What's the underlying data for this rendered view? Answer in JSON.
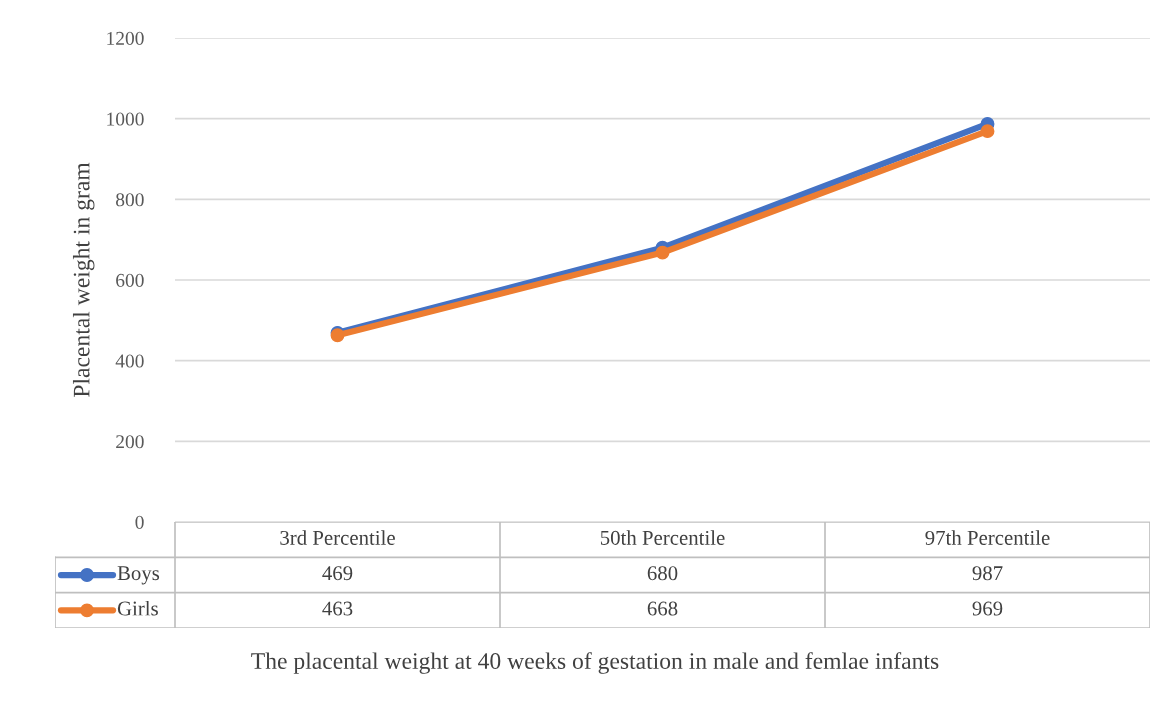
{
  "chart_data": {
    "type": "line",
    "ylabel": "Placental weight in gram",
    "categories": [
      "3rd Percentile",
      "50th Percentile",
      "97th Percentile"
    ],
    "series": [
      {
        "name": "Boys",
        "color": "#4472c4",
        "values": [
          469,
          680,
          987
        ]
      },
      {
        "name": "Girls",
        "color": "#ed7d31",
        "values": [
          463,
          668,
          969
        ]
      }
    ],
    "ylim": [
      0,
      1200
    ],
    "yticks": [
      0,
      200,
      400,
      600,
      800,
      1000,
      1200
    ],
    "grid": "y",
    "legend": "bottom",
    "data_labels": true,
    "marker": "circle",
    "line_style": "solid",
    "annotations": [
      "The placental weight at 40 weeks of gestation in male and femlae infants"
    ]
  }
}
